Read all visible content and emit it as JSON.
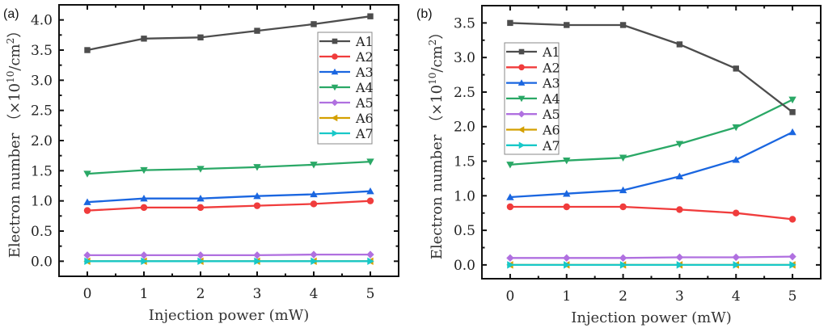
{
  "chart_data": [
    {
      "type": "line",
      "panel_label": "(a)",
      "xlabel": "Injection power (mW)",
      "ylabel": "Electron number (×10¹⁰/cm²)",
      "ylabel_parts": {
        "main": "Electron number",
        "prefix": "（×10",
        "exp": "10",
        "unit": "/cm",
        "unit_exp": "2",
        "suffix": "）"
      },
      "x": [
        0,
        1,
        2,
        3,
        4,
        5
      ],
      "xticks": [
        "0",
        "1",
        "2",
        "3",
        "4",
        "5"
      ],
      "xlim": [
        -0.5,
        5.5
      ],
      "ylim": [
        -0.25,
        4.25
      ],
      "yticks": [
        0.0,
        0.5,
        1.0,
        1.5,
        2.0,
        2.5,
        3.0,
        3.5,
        4.0
      ],
      "ytick_labels": [
        "0.0",
        "0.5",
        "1.0",
        "1.5",
        "2.0",
        "2.5",
        "3.0",
        "3.5",
        "4.0"
      ],
      "legend_position": "top-right",
      "grid": false,
      "series": [
        {
          "name": "A1",
          "color": "#4d4d4d",
          "marker": "square",
          "values": [
            3.5,
            3.69,
            3.71,
            3.82,
            3.93,
            4.06
          ]
        },
        {
          "name": "A2",
          "color": "#f03c3c",
          "marker": "circle",
          "values": [
            0.84,
            0.89,
            0.89,
            0.92,
            0.95,
            1.0
          ]
        },
        {
          "name": "A3",
          "color": "#1a66e0",
          "marker": "triangle-up",
          "values": [
            0.98,
            1.04,
            1.04,
            1.08,
            1.11,
            1.16
          ]
        },
        {
          "name": "A4",
          "color": "#2aa866",
          "marker": "triangle-down",
          "values": [
            1.45,
            1.51,
            1.53,
            1.56,
            1.6,
            1.65
          ]
        },
        {
          "name": "A5",
          "color": "#b070e0",
          "marker": "diamond",
          "values": [
            0.1,
            0.1,
            0.1,
            0.1,
            0.11,
            0.11
          ]
        },
        {
          "name": "A6",
          "color": "#d4a000",
          "marker": "triangle-left",
          "values": [
            0.0,
            0.0,
            0.0,
            0.0,
            0.0,
            0.0
          ]
        },
        {
          "name": "A7",
          "color": "#18c8c8",
          "marker": "triangle-right",
          "values": [
            0.0,
            0.0,
            0.0,
            0.0,
            0.0,
            0.0
          ]
        }
      ]
    },
    {
      "type": "line",
      "panel_label": "(b)",
      "xlabel": "Injection power (mW)",
      "ylabel": "Electron number (×10¹⁰/cm²)",
      "ylabel_parts": {
        "main": "Electron number",
        "prefix": "（×10",
        "exp": "10",
        "unit": "/cm",
        "unit_exp": "2",
        "suffix": "）"
      },
      "x": [
        0,
        1,
        2,
        3,
        4,
        5
      ],
      "xticks": [
        "0",
        "1",
        "2",
        "3",
        "4",
        "5"
      ],
      "xlim": [
        -0.5,
        5.5
      ],
      "ylim": [
        -0.2,
        3.75
      ],
      "yticks": [
        0.0,
        0.5,
        1.0,
        1.5,
        2.0,
        2.5,
        3.0,
        3.5
      ],
      "ytick_labels": [
        "0.0",
        "0.5",
        "1.0",
        "1.5",
        "2.0",
        "2.5",
        "3.0",
        "3.5"
      ],
      "legend_position": "top-left",
      "grid": false,
      "series": [
        {
          "name": "A1",
          "color": "#4d4d4d",
          "marker": "square",
          "values": [
            3.5,
            3.47,
            3.47,
            3.19,
            2.84,
            2.21
          ]
        },
        {
          "name": "A2",
          "color": "#f03c3c",
          "marker": "circle",
          "values": [
            0.84,
            0.84,
            0.84,
            0.8,
            0.75,
            0.66
          ]
        },
        {
          "name": "A3",
          "color": "#1a66e0",
          "marker": "triangle-up",
          "values": [
            0.98,
            1.03,
            1.08,
            1.28,
            1.52,
            1.92
          ]
        },
        {
          "name": "A4",
          "color": "#2aa866",
          "marker": "triangle-down",
          "values": [
            1.45,
            1.51,
            1.55,
            1.75,
            1.99,
            2.39
          ]
        },
        {
          "name": "A5",
          "color": "#b070e0",
          "marker": "diamond",
          "values": [
            0.1,
            0.1,
            0.1,
            0.11,
            0.11,
            0.12
          ]
        },
        {
          "name": "A6",
          "color": "#d4a000",
          "marker": "triangle-left",
          "values": [
            0.0,
            0.0,
            0.0,
            0.0,
            0.0,
            0.0
          ]
        },
        {
          "name": "A7",
          "color": "#18c8c8",
          "marker": "triangle-right",
          "values": [
            0.0,
            0.0,
            0.0,
            0.0,
            0.0,
            0.0
          ]
        }
      ]
    }
  ]
}
